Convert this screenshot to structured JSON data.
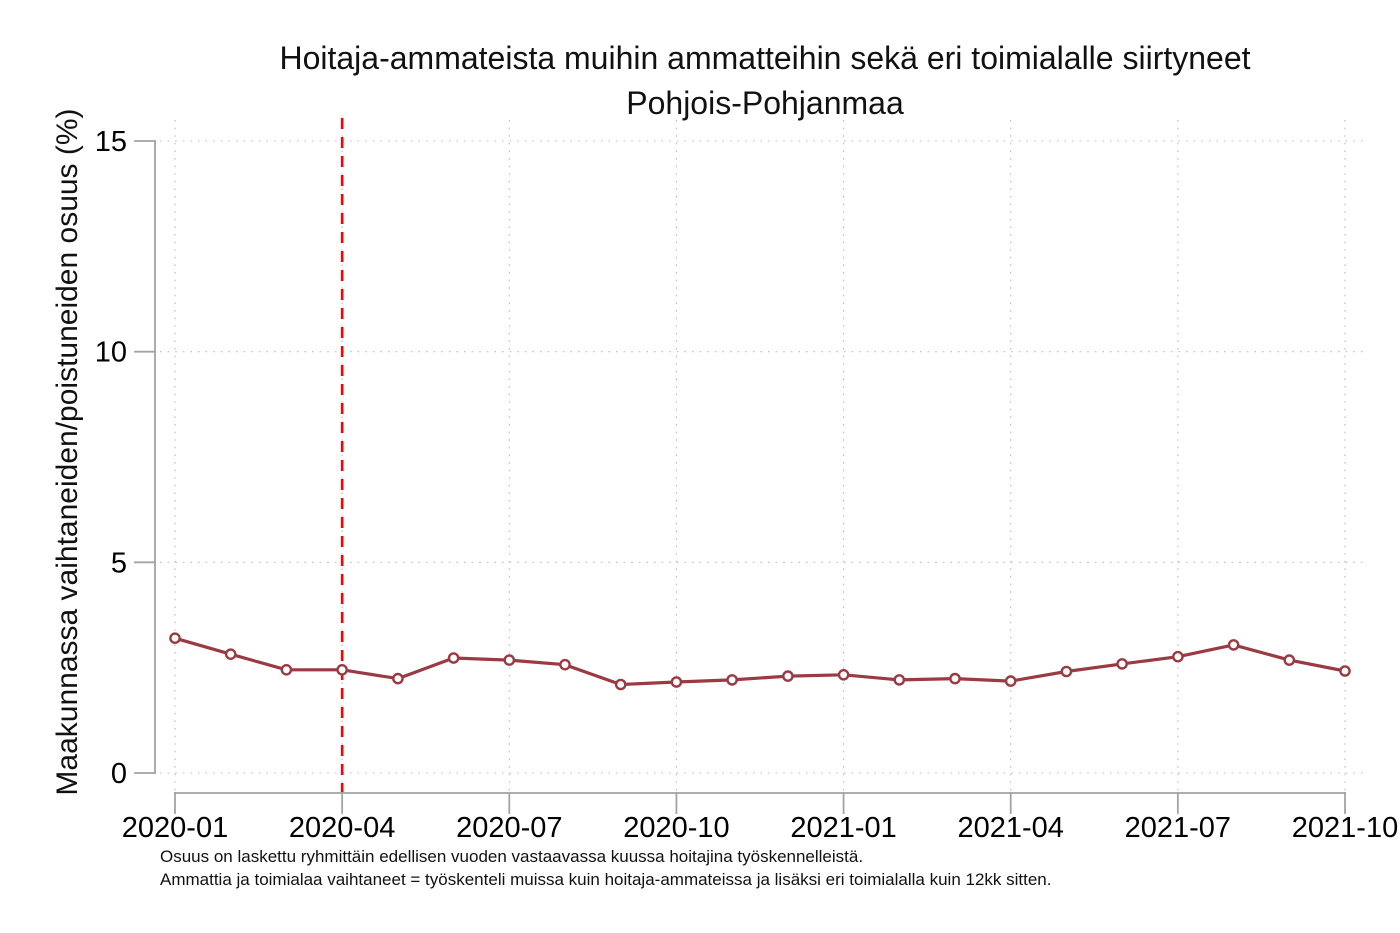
{
  "chart_data": {
    "type": "line",
    "title": "Hoitaja-ammateista muihin ammatteihin sekä eri toimialalle siirtyneet",
    "subtitle": "Pohjois-Pohjanmaa",
    "ylabel": "Maakunnassa vaihtaneiden/poistuneiden osuus (%)",
    "x": [
      "2020-01",
      "2020-02",
      "2020-03",
      "2020-04",
      "2020-05",
      "2020-06",
      "2020-07",
      "2020-08",
      "2020-09",
      "2020-10",
      "2020-11",
      "2020-12",
      "2021-01",
      "2021-02",
      "2021-03",
      "2021-04",
      "2021-05",
      "2021-06",
      "2021-07",
      "2021-08",
      "2021-09",
      "2021-10"
    ],
    "series": [
      {
        "name": "Maakunnassa vaihtaneiden/poistuneiden osuus (%)",
        "values": [
          3.2,
          2.82,
          2.45,
          2.45,
          2.24,
          2.73,
          2.68,
          2.57,
          2.1,
          2.16,
          2.21,
          2.3,
          2.33,
          2.21,
          2.24,
          2.18,
          2.41,
          2.59,
          2.76,
          3.04,
          2.68,
          2.42
        ]
      }
    ],
    "x_tick_labels": [
      "2020-01",
      "2020-04",
      "2020-07",
      "2020-10",
      "2021-01",
      "2021-04",
      "2021-07",
      "2021-10"
    ],
    "yticks": [
      0,
      5,
      10,
      15
    ],
    "ylim": [
      0,
      15.5
    ],
    "grid": "dotted gridlines at x and y ticks",
    "legend": "none",
    "reference_line_x": "2020-04",
    "annotations": [
      "vertical red dashed reference line at 2020-04"
    ],
    "colors": {
      "line": "#9a3a42",
      "marker_fill": "#ffffff",
      "reference_line": "#ff0000",
      "axis": "#a3a3a3",
      "grid": "#bcbcbc"
    },
    "footnotes": [
      "Osuus on laskettu ryhmittäin edellisen vuoden vastaavassa kuussa hoitajina työskennelleistä.",
      "Ammattia ja toimialaa vaihtaneet = työskenteli muissa kuin hoitaja-ammateissa ja lisäksi eri toimialalla kuin 12kk sitten."
    ]
  }
}
